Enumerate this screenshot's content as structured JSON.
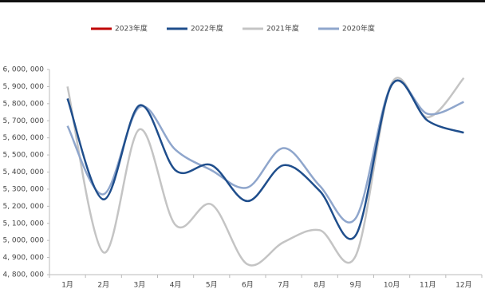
{
  "chart_data": {
    "type": "line",
    "categories": [
      "1月",
      "2月",
      "3月",
      "4月",
      "5月",
      "6月",
      "7月",
      "8月",
      "9月",
      "10月",
      "11月",
      "12月"
    ],
    "series": [
      {
        "name": "2023年度",
        "color": "#c00000",
        "values": [
          null,
          null,
          null,
          null,
          null,
          null,
          null,
          null,
          null,
          null,
          null,
          null
        ]
      },
      {
        "name": "2022年度",
        "color": "#1f4e8c",
        "values": [
          5830000,
          5240000,
          5790000,
          5410000,
          5440000,
          5230000,
          5440000,
          5290000,
          5030000,
          5910000,
          5700000,
          5630000
        ]
      },
      {
        "name": "2021年度",
        "color": "#c4c4c4",
        "values": [
          5900000,
          4930000,
          5650000,
          5090000,
          5210000,
          4860000,
          4990000,
          5060000,
          4910000,
          5920000,
          5720000,
          5950000
        ]
      },
      {
        "name": "2020年度",
        "color": "#8fa6cc",
        "values": [
          5670000,
          5270000,
          5780000,
          5530000,
          5410000,
          5310000,
          5540000,
          5320000,
          5130000,
          5910000,
          5740000,
          5810000
        ]
      }
    ],
    "ylim": [
      4800000,
      6000000
    ],
    "yticks": [
      {
        "value": 4800000,
        "label": "4, 800, 000"
      },
      {
        "value": 4900000,
        "label": "4, 900, 000"
      },
      {
        "value": 5000000,
        "label": "5, 000, 000"
      },
      {
        "value": 5100000,
        "label": "5, 100, 000"
      },
      {
        "value": 5200000,
        "label": "5, 200, 000"
      },
      {
        "value": 5300000,
        "label": "5, 300, 000"
      },
      {
        "value": 5400000,
        "label": "5, 400, 000"
      },
      {
        "value": 5500000,
        "label": "5, 500, 000"
      },
      {
        "value": 5600000,
        "label": "5, 600, 000"
      },
      {
        "value": 5700000,
        "label": "5, 700, 000"
      },
      {
        "value": 5800000,
        "label": "5, 800, 000"
      },
      {
        "value": 5900000,
        "label": "5, 900, 000"
      },
      {
        "value": 6000000,
        "label": "6, 000, 000"
      }
    ],
    "legend": "top",
    "smooth": true
  }
}
